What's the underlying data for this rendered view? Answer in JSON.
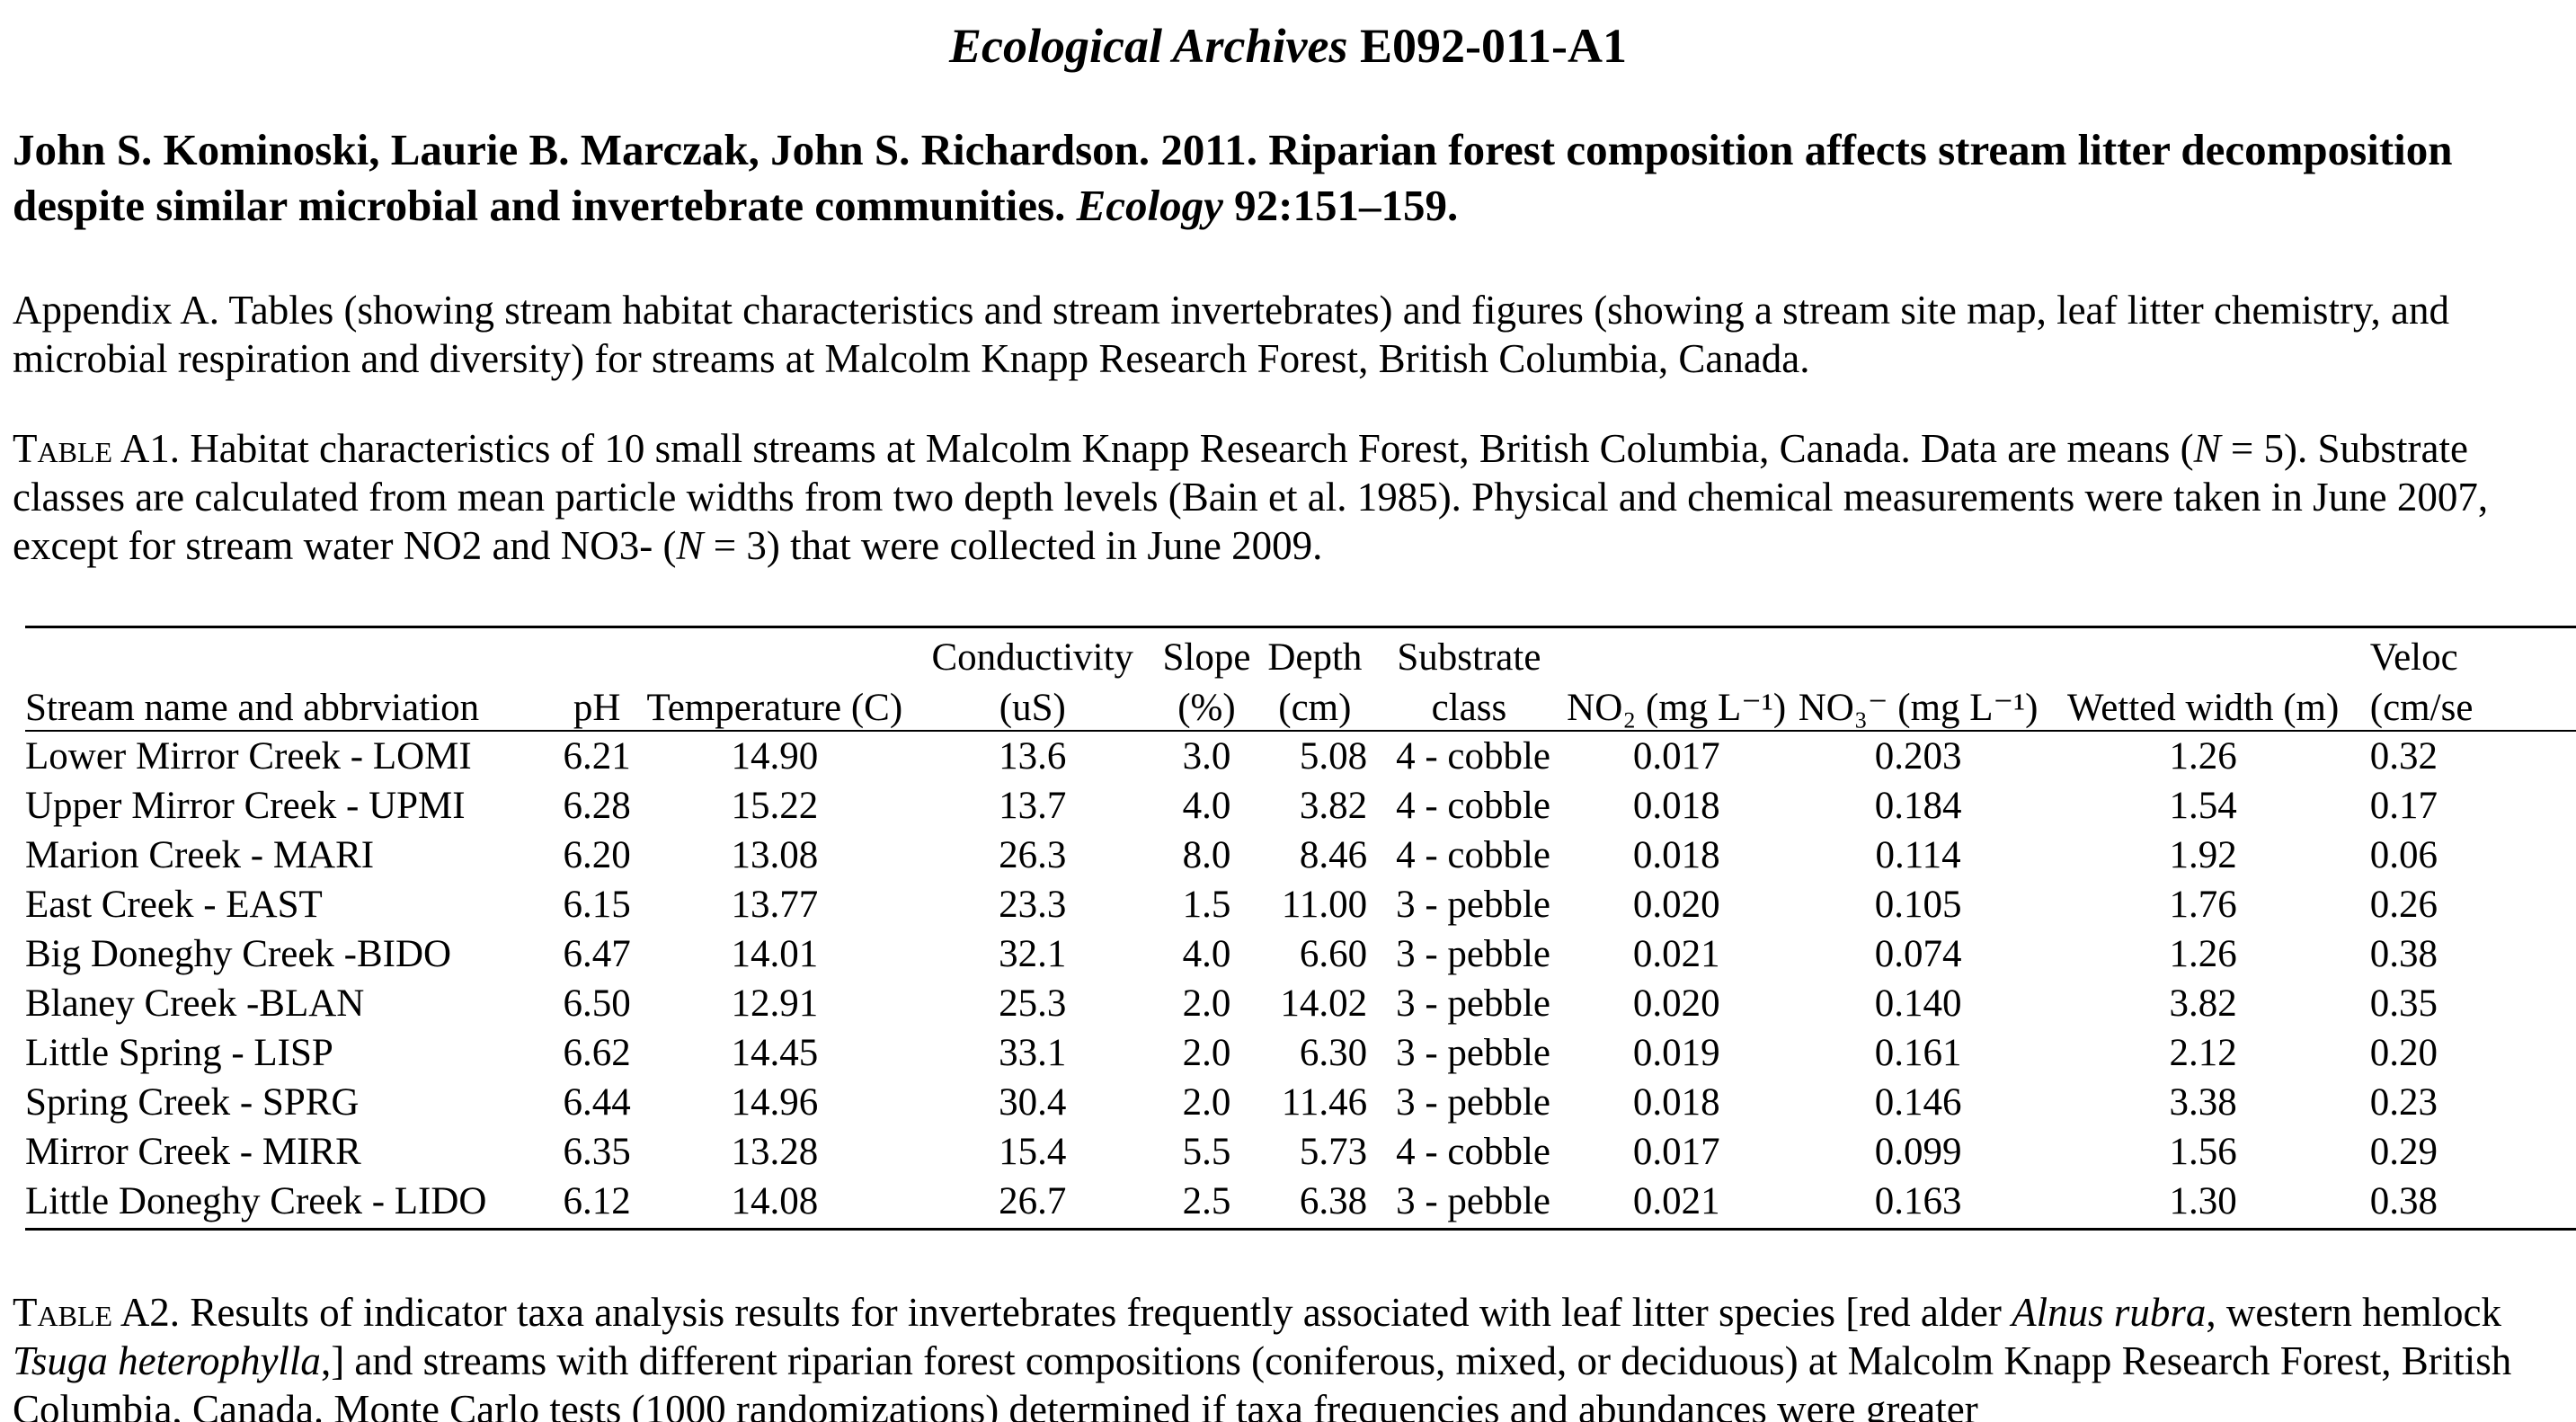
{
  "header": {
    "italic_part": "Ecological Archives",
    "code": "E092-011-A1"
  },
  "citation": {
    "authors_title": "John S. Kominoski, Laurie B. Marczak, John S. Richardson. 2011. Riparian forest composition affects stream litter decomposition despite similar microbial and invertebrate communities.",
    "journal": "Ecology",
    "volume_pages": "92:151–159."
  },
  "appendix_text": "Appendix A. Tables (showing stream habitat characteristics and stream invertebrates) and figures (showing a stream site map, leaf litter chemistry, and microbial respiration and diversity) for streams at Malcolm Knapp Research Forest, British Columbia, Canada.",
  "table_a1": {
    "label": "Table",
    "label_num": " A1.",
    "caption_1": " Habitat characteristics of 10 small streams at Malcolm Knapp Research Forest, British Columbia, Canada. Data are means (",
    "caption_n": "N",
    "caption_2": " = 5). Substrate classes are calculated from mean particle widths from two depth levels (Bain et al. 1985). Physical and chemical measurements were taken in June 2007, except for stream water NO2 and NO3- (",
    "caption_n2": "N",
    "caption_3": " = 3) that were collected in June 2009.",
    "header_top": [
      "",
      "",
      "",
      "Conductivity",
      "Slope",
      "Depth",
      "Substrate",
      "",
      "",
      "",
      "Veloc"
    ],
    "header_bottom": [
      "Stream name and abbrviation",
      "pH",
      "Temperature (C)",
      "(uS)",
      "(%)",
      "(cm)",
      "class",
      "NO₂ (mg L⁻¹)",
      "NO₃⁻ (mg L⁻¹)",
      "Wetted width (m)",
      "(cm/se"
    ],
    "rows": [
      [
        "Lower Mirror Creek - LOMI",
        "6.21",
        "14.90",
        "13.6",
        "3.0",
        "5.08",
        "4 - cobble",
        "0.017",
        "0.203",
        "1.26",
        "0.32"
      ],
      [
        "Upper Mirror Creek - UPMI",
        "6.28",
        "15.22",
        "13.7",
        "4.0",
        "3.82",
        "4 - cobble",
        "0.018",
        "0.184",
        "1.54",
        "0.17"
      ],
      [
        "Marion Creek - MARI",
        "6.20",
        "13.08",
        "26.3",
        "8.0",
        "8.46",
        "4 - cobble",
        "0.018",
        "0.114",
        "1.92",
        "0.06"
      ],
      [
        "East Creek - EAST",
        "6.15",
        "13.77",
        "23.3",
        "1.5",
        "11.00",
        "3 - pebble",
        "0.020",
        "0.105",
        "1.76",
        "0.26"
      ],
      [
        "Big Doneghy Creek -BIDO",
        "6.47",
        "14.01",
        "32.1",
        "4.0",
        "6.60",
        "3 - pebble",
        "0.021",
        "0.074",
        "1.26",
        "0.38"
      ],
      [
        "Blaney Creek -BLAN",
        "6.50",
        "12.91",
        "25.3",
        "2.0",
        "14.02",
        "3 - pebble",
        "0.020",
        "0.140",
        "3.82",
        "0.35"
      ],
      [
        "Little Spring - LISP",
        "6.62",
        "14.45",
        "33.1",
        "2.0",
        "6.30",
        "3 - pebble",
        "0.019",
        "0.161",
        "2.12",
        "0.20"
      ],
      [
        "Spring Creek - SPRG",
        "6.44",
        "14.96",
        "30.4",
        "2.0",
        "11.46",
        "3 - pebble",
        "0.018",
        "0.146",
        "3.38",
        "0.23"
      ],
      [
        "Mirror Creek - MIRR",
        "6.35",
        "13.28",
        "15.4",
        "5.5",
        "5.73",
        "4 - cobble",
        "0.017",
        "0.099",
        "1.56",
        "0.29"
      ],
      [
        "Little Doneghy Creek - LIDO",
        "6.12",
        "14.08",
        "26.7",
        "2.5",
        "6.38",
        "3 - pebble",
        "0.021",
        "0.163",
        "1.30",
        "0.38"
      ]
    ]
  },
  "table_a2": {
    "label": "Table",
    "label_num": " A2.",
    "caption_1": " Results of indicator taxa analysis results for invertebrates frequently associated with leaf litter species [red alder ",
    "species_1": "Alnus rubra",
    "caption_2": ", western hemlock ",
    "species_2": "Tsuga heterophylla",
    "caption_3": ",] and streams with different riparian forest compositions (coniferous, mixed, or deciduous) at Malcolm Knapp Research Forest, British Columbia, Canada. Monte Carlo tests (1000 randomizations) determined if taxa frequencies and abundances were greater"
  }
}
